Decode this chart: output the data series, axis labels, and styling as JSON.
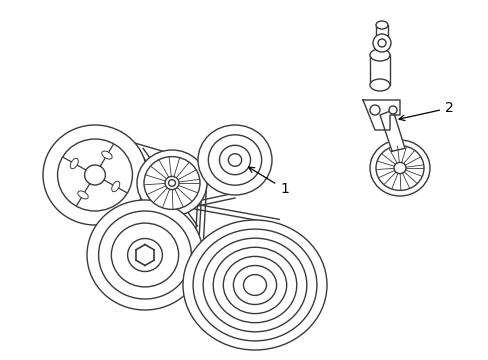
{
  "background_color": "#ffffff",
  "line_color": "#3a3a3a",
  "line_width": 1.0,
  "fig_width": 4.89,
  "fig_height": 3.6,
  "dpi": 100,
  "label1": "1",
  "label2": "2"
}
